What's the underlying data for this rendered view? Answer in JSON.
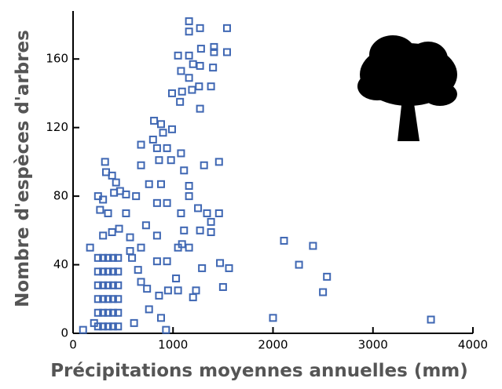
{
  "chart_data": {
    "type": "scatter",
    "xlabel": "Précipitations moyennes annuelles (mm)",
    "ylabel": "Nombre d'espèces d'arbres",
    "xlim": [
      0,
      4000
    ],
    "ylim": [
      0,
      188
    ],
    "xticks": [
      0,
      1000,
      2000,
      3000,
      4000
    ],
    "yticks": [
      0,
      40,
      80,
      120,
      160
    ],
    "color": "#3f67b3",
    "x": [
      1160,
      1270,
      1540,
      1160,
      1050,
      1160,
      1410,
      1410,
      1540,
      1280,
      1270,
      1200,
      1080,
      1160,
      1400,
      1260,
      1380,
      990,
      1090,
      1190,
      1070,
      1270,
      810,
      880,
      990,
      900,
      680,
      800,
      840,
      940,
      1080,
      860,
      980,
      680,
      320,
      330,
      390,
      430,
      1460,
      1310,
      1110,
      760,
      880,
      1160,
      250,
      300,
      410,
      470,
      530,
      630,
      1160,
      940,
      840,
      1250,
      270,
      350,
      530,
      1080,
      1340,
      1460,
      730,
      840,
      1110,
      1380,
      1380,
      1270,
      170,
      300,
      390,
      460,
      570,
      680,
      1050,
      1090,
      1160,
      940,
      840,
      1290,
      1470,
      1560,
      1030,
      1230,
      950,
      1050,
      1500,
      1200,
      2110,
      2260,
      2400,
      2540,
      2500,
      2000,
      3580,
      100,
      210,
      860,
      760,
      880,
      930,
      610,
      740,
      680,
      650,
      590,
      570,
      250,
      300,
      350,
      400,
      450,
      250,
      300,
      350,
      400,
      450,
      250,
      300,
      350,
      400,
      450,
      250,
      300,
      350,
      400,
      450,
      250,
      300,
      350,
      400,
      450,
      250,
      300,
      350,
      400,
      450
    ],
    "y": [
      182,
      178,
      178,
      176,
      162,
      162,
      167,
      164,
      164,
      166,
      156,
      157,
      153,
      149,
      155,
      144,
      144,
      140,
      141,
      142,
      135,
      131,
      124,
      122,
      119,
      117,
      110,
      113,
      108,
      108,
      105,
      101,
      101,
      98,
      100,
      94,
      92,
      88,
      100,
      98,
      95,
      87,
      87,
      86,
      80,
      78,
      82,
      83,
      81,
      80,
      80,
      76,
      76,
      73,
      72,
      70,
      70,
      70,
      70,
      70,
      63,
      57,
      60,
      65,
      59,
      60,
      50,
      57,
      59,
      61,
      56,
      50,
      50,
      52,
      50,
      42,
      42,
      38,
      41,
      38,
      32,
      25,
      25,
      25,
      27,
      21,
      54,
      40,
      51,
      33,
      24,
      9,
      8,
      2,
      6,
      22,
      14,
      9,
      2,
      6,
      26,
      30,
      37,
      44,
      48,
      4,
      4,
      4,
      4,
      4,
      12,
      12,
      12,
      12,
      12,
      20,
      20,
      20,
      20,
      20,
      28,
      28,
      28,
      28,
      28,
      36,
      36,
      36,
      36,
      36,
      44,
      44,
      44,
      44,
      44
    ]
  }
}
